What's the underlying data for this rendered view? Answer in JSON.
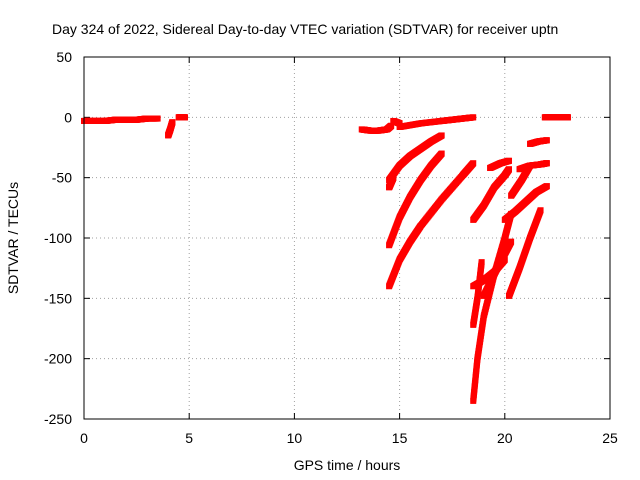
{
  "chart_data": {
    "type": "scatter",
    "title": "Day 324 of 2022, Sidereal Day-to-day VTEC variation (SDTVAR) for receiver uptn",
    "xlabel": "GPS time / hours",
    "ylabel": "SDTVAR / TECUs",
    "xlim": [
      0,
      25
    ],
    "ylim": [
      -250,
      50
    ],
    "xticks": [
      0,
      5,
      10,
      15,
      20,
      25
    ],
    "yticks": [
      -250,
      -200,
      -150,
      -100,
      -50,
      0,
      50
    ],
    "xtick_labels": [
      "0",
      "5",
      "10",
      "15",
      "20",
      "25"
    ],
    "ytick_labels": [
      "-250",
      "-200",
      "-150",
      "-100",
      "-50",
      "0",
      "50"
    ],
    "grid": true,
    "legend": "none",
    "marker_color": "#ff0000",
    "series": [
      {
        "x": [
          0.0,
          0.5,
          1.0,
          1.5,
          2.0,
          2.5,
          3.0,
          3.5
        ],
        "y": [
          -3,
          -3,
          -3,
          -2,
          -2,
          -2,
          -1,
          -1
        ]
      },
      {
        "x": [
          4.0,
          4.1,
          4.2
        ],
        "y": [
          -15,
          -10,
          -4
        ]
      },
      {
        "x": [
          4.5,
          4.8
        ],
        "y": [
          0,
          0
        ]
      },
      {
        "x": [
          13.2,
          13.6,
          14.0,
          14.4,
          14.6
        ],
        "y": [
          -10,
          -11,
          -11,
          -10,
          -7
        ]
      },
      {
        "x": [
          14.7,
          15.0
        ],
        "y": [
          -3,
          -5
        ]
      },
      {
        "x": [
          15.0,
          16.0,
          17.0,
          17.5,
          18.0,
          18.5
        ],
        "y": [
          -8,
          -5,
          -3,
          -2,
          -1,
          0
        ]
      },
      {
        "x": [
          14.5,
          14.6,
          14.7
        ],
        "y": [
          -58,
          -54,
          -50
        ]
      },
      {
        "x": [
          14.5,
          15.0,
          15.5,
          16.0,
          16.5,
          17.0
        ],
        "y": [
          -52,
          -40,
          -32,
          -26,
          -20,
          -15
        ]
      },
      {
        "x": [
          14.5,
          15.0,
          15.5,
          16.0,
          16.5,
          17.0
        ],
        "y": [
          -106,
          -83,
          -66,
          -52,
          -40,
          -30
        ]
      },
      {
        "x": [
          14.5,
          15.0,
          15.5,
          16.0,
          17.0,
          18.0,
          18.5
        ],
        "y": [
          -140,
          -118,
          -103,
          -90,
          -68,
          -48,
          -38
        ]
      },
      {
        "x": [
          18.5,
          19.0,
          19.5,
          20.0,
          20.2
        ],
        "y": [
          -85,
          -73,
          -58,
          -48,
          -43
        ]
      },
      {
        "x": [
          18.5,
          18.7,
          19.0,
          19.5,
          20.0,
          20.3
        ],
        "y": [
          -235,
          -200,
          -165,
          -130,
          -100,
          -80
        ]
      },
      {
        "x": [
          18.5,
          18.7,
          18.9
        ],
        "y": [
          -172,
          -150,
          -120
        ]
      },
      {
        "x": [
          18.5,
          19.0,
          19.5,
          20.0
        ],
        "y": [
          -140,
          -135,
          -128,
          -118
        ]
      },
      {
        "x": [
          19.0,
          19.5,
          20.0,
          20.3
        ],
        "y": [
          -148,
          -130,
          -113,
          -103
        ]
      },
      {
        "x": [
          19.3,
          19.8,
          20.2
        ],
        "y": [
          -42,
          -38,
          -36
        ]
      },
      {
        "x": [
          20.0,
          20.5,
          21.0,
          21.5,
          22.0
        ],
        "y": [
          -85,
          -78,
          -70,
          -62,
          -57
        ]
      },
      {
        "x": [
          20.2,
          20.7,
          21.2,
          21.7
        ],
        "y": [
          -148,
          -125,
          -100,
          -77
        ]
      },
      {
        "x": [
          20.3,
          20.8,
          21.2
        ],
        "y": [
          -65,
          -52,
          -40
        ]
      },
      {
        "x": [
          20.7,
          21.2,
          21.7,
          22.0
        ],
        "y": [
          -43,
          -40,
          -39,
          -38
        ]
      },
      {
        "x": [
          21.2,
          21.6,
          22.0
        ],
        "y": [
          -22,
          -20,
          -19
        ]
      },
      {
        "x": [
          21.9,
          22.3,
          22.8,
          23.0
        ],
        "y": [
          0,
          0,
          0,
          0
        ]
      }
    ]
  }
}
